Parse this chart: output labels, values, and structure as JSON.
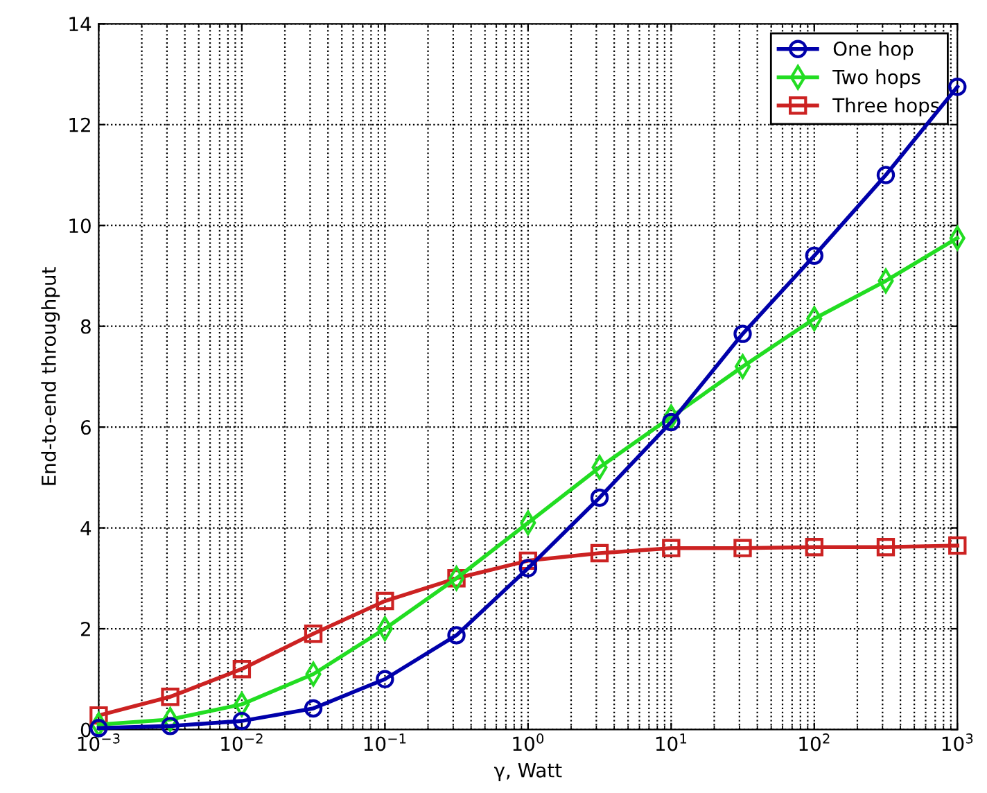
{
  "chart_data": {
    "type": "line",
    "xlabel": "γ, Watt",
    "ylabel": "End-to-end throughput",
    "x": [
      0.001,
      0.00316,
      0.01,
      0.0316,
      0.1,
      0.316,
      1,
      3.16,
      10,
      31.6,
      100,
      316,
      1000
    ],
    "log": "x",
    "xlim": [
      0.001,
      1000
    ],
    "ylim": [
      0,
      14
    ],
    "xticks": [
      {
        "value": 0.001,
        "label": "10$^{−3}$"
      },
      {
        "value": 0.01,
        "label": "10$^{−2}$"
      },
      {
        "value": 0.1,
        "label": "10$^{−1}$"
      },
      {
        "value": 1,
        "label": "10$^{0}$"
      },
      {
        "value": 10,
        "label": "10$^{1}$"
      },
      {
        "value": 100,
        "label": "10$^{2}$"
      },
      {
        "value": 1000,
        "label": "10$^{3}$"
      }
    ],
    "yticks": [
      0,
      2,
      4,
      6,
      8,
      10,
      12,
      14
    ],
    "grid": true,
    "legend": "top right",
    "line_style": "solid",
    "series": [
      {
        "name": "One hop",
        "color": "#0000aa",
        "marker": "circle",
        "values": [
          0.03,
          0.07,
          0.17,
          0.42,
          1.0,
          1.87,
          3.2,
          4.6,
          6.1,
          7.85,
          9.4,
          11.0,
          12.75
        ]
      },
      {
        "name": "Two hops",
        "color": "#22dd22",
        "marker": "diamond",
        "values": [
          0.1,
          0.2,
          0.5,
          1.1,
          2.0,
          3.0,
          4.1,
          5.2,
          6.2,
          7.2,
          8.15,
          8.9,
          9.75
        ]
      },
      {
        "name": "Three hops",
        "color": "#cc2222",
        "marker": "square",
        "values": [
          0.28,
          0.65,
          1.2,
          1.9,
          2.55,
          3.0,
          3.35,
          3.5,
          3.6,
          3.6,
          3.62,
          3.62,
          3.65
        ]
      }
    ]
  }
}
